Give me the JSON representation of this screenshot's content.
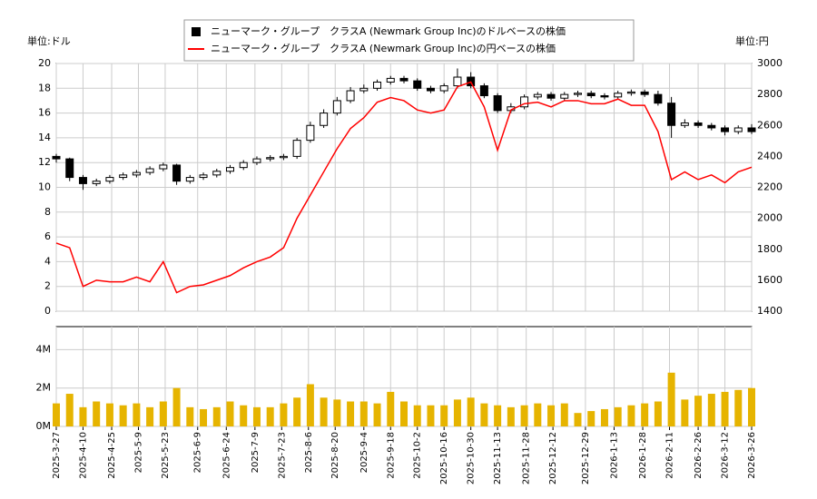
{
  "chart_data": [
    {
      "type": "candlestick",
      "y_label": "単位:ドル",
      "y2_label": "単位:円",
      "ylim": [
        0,
        20
      ],
      "yticks": [
        0,
        2,
        4,
        6,
        8,
        10,
        12,
        14,
        16,
        18,
        20
      ],
      "y2lim": [
        1400,
        3000
      ],
      "y2ticks": [
        1400,
        1600,
        1800,
        2000,
        2200,
        2400,
        2600,
        2800,
        3000
      ],
      "grid": true,
      "legend": "top",
      "x": [
        "2025-3-27",
        "2025-4-3",
        "2025-4-10",
        "2025-4-17",
        "2025-4-24",
        "2025-5-1",
        "2025-5-8",
        "2025-5-15",
        "2025-5-22",
        "2025-5-29",
        "2025-6-5",
        "2025-6-12",
        "2025-6-19",
        "2025-6-26",
        "2025-7-3",
        "2025-7-10",
        "2025-7-17",
        "2025-7-24",
        "2025-7-31",
        "2025-8-7",
        "2025-8-14",
        "2025-8-21",
        "2025-8-28",
        "2025-9-4",
        "2025-9-11",
        "2025-9-18",
        "2025-9-25",
        "2025-10-2",
        "2025-10-9",
        "2025-10-16",
        "2025-10-23",
        "2025-10-30",
        "2025-11-6",
        "2025-11-13",
        "2025-11-20",
        "2025-11-27",
        "2025-12-4",
        "2025-12-11",
        "2025-12-18",
        "2025-12-25",
        "2026-1-1",
        "2026-1-8",
        "2026-1-15",
        "2026-1-22",
        "2026-1-29",
        "2026-2-5",
        "2026-2-12",
        "2026-2-19",
        "2026-2-26",
        "2026-3-5",
        "2026-3-12",
        "2026-3-19",
        "2026-3-26"
      ],
      "series": [
        {
          "name": "ニューマーク・グループ　クラスA (Newmark Group Inc)のドルベースの株価",
          "color": "#000000",
          "open": [
            12.5,
            12.3,
            10.8,
            10.3,
            10.5,
            10.8,
            11.0,
            11.2,
            11.5,
            11.8,
            10.5,
            10.8,
            11.0,
            11.3,
            11.6,
            12.0,
            12.3,
            12.4,
            12.5,
            13.8,
            15.0,
            16.0,
            17.0,
            17.8,
            18.0,
            18.5,
            18.8,
            18.6,
            18.0,
            17.8,
            18.2,
            18.9,
            18.2,
            17.4,
            16.2,
            16.5,
            17.3,
            17.5,
            17.2,
            17.5,
            17.6,
            17.4,
            17.3,
            17.6,
            17.7,
            17.5,
            16.8,
            15.0,
            15.2,
            15.0,
            14.8,
            14.5,
            14.8
          ],
          "high": [
            12.7,
            12.4,
            11.0,
            10.7,
            11.0,
            11.2,
            11.4,
            11.7,
            12.0,
            11.9,
            11.0,
            11.2,
            11.5,
            11.8,
            12.2,
            12.5,
            12.6,
            12.7,
            14.0,
            15.3,
            16.3,
            17.3,
            18.1,
            18.3,
            18.7,
            19.0,
            19.0,
            18.8,
            18.2,
            18.4,
            19.6,
            19.3,
            18.4,
            17.6,
            16.8,
            17.5,
            17.7,
            17.7,
            17.7,
            17.8,
            17.8,
            17.6,
            17.8,
            17.9,
            17.9,
            17.8,
            17.3,
            15.5,
            15.4,
            15.2,
            15.0,
            15.0,
            15.1
          ],
          "low": [
            12.0,
            10.5,
            9.8,
            10.1,
            10.3,
            10.6,
            10.8,
            11.0,
            11.3,
            10.2,
            10.3,
            10.6,
            10.8,
            11.1,
            11.4,
            11.8,
            12.1,
            12.2,
            12.3,
            13.6,
            14.8,
            15.8,
            16.8,
            17.6,
            17.8,
            18.3,
            18.4,
            17.8,
            17.6,
            17.6,
            18.0,
            18.0,
            17.2,
            16.0,
            16.0,
            16.3,
            17.1,
            17.0,
            17.0,
            17.3,
            17.2,
            17.1,
            17.1,
            17.4,
            17.3,
            16.6,
            14.0,
            14.8,
            14.8,
            14.6,
            14.2,
            14.3,
            14.3
          ],
          "close": [
            12.3,
            10.8,
            10.3,
            10.5,
            10.8,
            11.0,
            11.2,
            11.5,
            11.8,
            10.5,
            10.8,
            11.0,
            11.3,
            11.6,
            12.0,
            12.3,
            12.4,
            12.5,
            13.8,
            15.0,
            16.0,
            17.0,
            17.8,
            18.0,
            18.5,
            18.8,
            18.6,
            18.0,
            17.8,
            18.2,
            18.9,
            18.2,
            17.4,
            16.2,
            16.5,
            17.3,
            17.5,
            17.2,
            17.5,
            17.6,
            17.4,
            17.3,
            17.6,
            17.7,
            17.5,
            16.8,
            15.0,
            15.2,
            15.0,
            14.8,
            14.5,
            14.8,
            14.5
          ]
        },
        {
          "name": "ニューマーク・グループ　クラスA (Newmark Group Inc)の円ベースの株価",
          "color": "#ff0000",
          "axis": "y2",
          "type": "line",
          "values": [
            1840,
            1810,
            1560,
            1600,
            1590,
            1590,
            1620,
            1590,
            1720,
            1520,
            1560,
            1570,
            1600,
            1630,
            1680,
            1720,
            1750,
            1810,
            2000,
            2150,
            2300,
            2450,
            2580,
            2650,
            2750,
            2780,
            2760,
            2700,
            2680,
            2700,
            2850,
            2880,
            2720,
            2440,
            2700,
            2740,
            2750,
            2720,
            2760,
            2760,
            2740,
            2740,
            2770,
            2730,
            2730,
            2560,
            2250,
            2300,
            2250,
            2280,
            2230,
            2300,
            2330
          ]
        }
      ]
    },
    {
      "type": "bar",
      "color": "#e6b400",
      "ylim": [
        0,
        5200000
      ],
      "yticks": [
        {
          "value": 0,
          "label": "0M"
        },
        {
          "value": 2000000,
          "label": "2M"
        },
        {
          "value": 4000000,
          "label": "4M"
        }
      ],
      "xlim": [
        "2025-3-27",
        "2026-3-26"
      ],
      "xticks": [
        "2025-3-27",
        "2025-4-10",
        "2025-4-25",
        "2025-5-9",
        "2025-5-23",
        "2025-6-9",
        "2025-6-24",
        "2025-7-9",
        "2025-7-23",
        "2025-8-6",
        "2025-8-20",
        "2025-9-4",
        "2025-9-18",
        "2025-10-2",
        "2025-10-16",
        "2025-10-30",
        "2025-11-13",
        "2025-11-28",
        "2025-12-12",
        "2025-12-29",
        "2026-1-13",
        "2026-1-28",
        "2026-2-11",
        "2026-2-26",
        "2026-3-12",
        "2026-3-26"
      ],
      "x": [
        "2025-3-27",
        "2025-4-3",
        "2025-4-10",
        "2025-4-17",
        "2025-4-24",
        "2025-5-1",
        "2025-5-8",
        "2025-5-15",
        "2025-5-22",
        "2025-5-29",
        "2025-6-5",
        "2025-6-12",
        "2025-6-19",
        "2025-6-26",
        "2025-7-3",
        "2025-7-10",
        "2025-7-17",
        "2025-7-24",
        "2025-7-31",
        "2025-8-7",
        "2025-8-14",
        "2025-8-21",
        "2025-8-28",
        "2025-9-4",
        "2025-9-11",
        "2025-9-18",
        "2025-9-25",
        "2025-10-2",
        "2025-10-9",
        "2025-10-16",
        "2025-10-23",
        "2025-10-30",
        "2025-11-6",
        "2025-11-13",
        "2025-11-20",
        "2025-11-27",
        "2025-12-4",
        "2025-12-11",
        "2025-12-18",
        "2025-12-25",
        "2026-1-1",
        "2026-1-8",
        "2026-1-15",
        "2026-1-22",
        "2026-1-29",
        "2026-2-5",
        "2026-2-12",
        "2026-2-19",
        "2026-2-26",
        "2026-3-5",
        "2026-3-12",
        "2026-3-19",
        "2026-3-26"
      ],
      "values": [
        1200000,
        1700000,
        1000000,
        1300000,
        1200000,
        1100000,
        1200000,
        1000000,
        1300000,
        2000000,
        1000000,
        900000,
        1000000,
        1300000,
        1100000,
        1000000,
        1000000,
        1200000,
        1500000,
        2200000,
        1500000,
        1400000,
        1300000,
        1300000,
        1200000,
        1800000,
        1300000,
        1100000,
        1100000,
        1100000,
        1400000,
        1500000,
        1200000,
        1100000,
        1000000,
        1100000,
        1200000,
        1100000,
        1200000,
        700000,
        800000,
        900000,
        1000000,
        1100000,
        1200000,
        1300000,
        2800000,
        1400000,
        1600000,
        1700000,
        1800000,
        1900000,
        2000000
      ]
    }
  ]
}
